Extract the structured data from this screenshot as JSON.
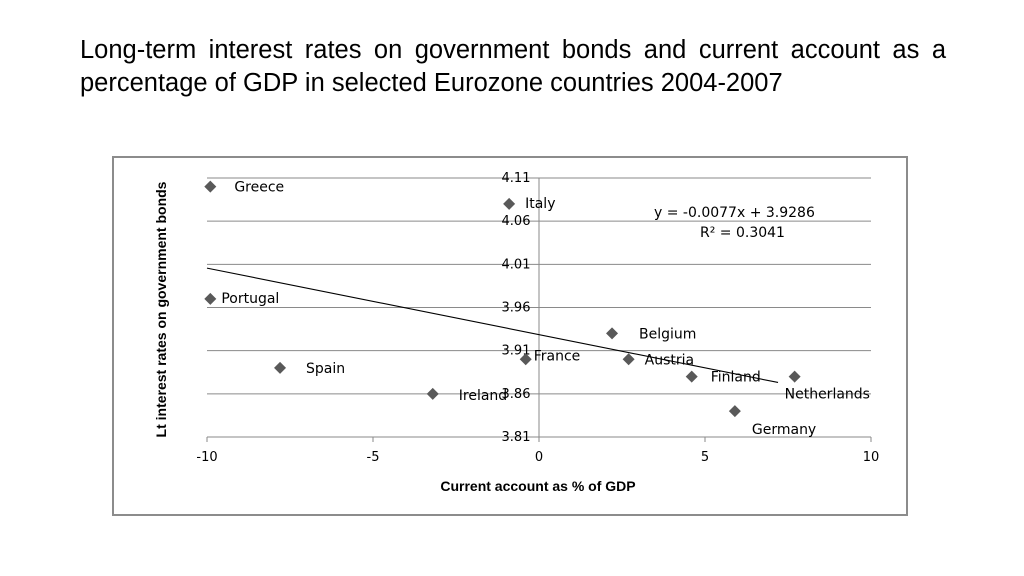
{
  "slide": {
    "title": "Long-term interest rates on government bonds and current account as a percentage of GDP in selected Eurozone countries 2004-2007"
  },
  "chart_data": {
    "type": "scatter",
    "title": "",
    "xlabel": "Current account as % of GDP",
    "ylabel": "Lt interest rates on government bonds",
    "xlim": [
      -10,
      10
    ],
    "ylim": [
      3.81,
      4.11
    ],
    "x_ticks": [
      -10,
      -5,
      0,
      5,
      10
    ],
    "x_tick_labels": [
      "-10",
      "-5",
      "0",
      "5",
      "10"
    ],
    "y_ticks": [
      3.81,
      3.86,
      3.91,
      3.96,
      4.01,
      4.06,
      4.11
    ],
    "y_tick_labels": [
      "3.81",
      "3.86",
      "3.91",
      "3.96",
      "4.01",
      "4.06",
      "4.11"
    ],
    "grid": true,
    "marker_color": "#595959",
    "points": [
      {
        "label": "Greece",
        "x": -9.9,
        "y": 4.1
      },
      {
        "label": "Italy",
        "x": -0.9,
        "y": 4.08
      },
      {
        "label": "Portugal",
        "x": -9.9,
        "y": 3.97
      },
      {
        "label": "Spain",
        "x": -7.8,
        "y": 3.89
      },
      {
        "label": "Ireland",
        "x": -3.2,
        "y": 3.86
      },
      {
        "label": "France",
        "x": -0.4,
        "y": 3.9
      },
      {
        "label": "Belgium",
        "x": 2.2,
        "y": 3.93
      },
      {
        "label": "Austria",
        "x": 2.7,
        "y": 3.9
      },
      {
        "label": "Finland",
        "x": 4.6,
        "y": 3.88
      },
      {
        "label": "Netherlands",
        "x": 7.7,
        "y": 3.88
      },
      {
        "label": "Germany",
        "x": 5.9,
        "y": 3.84
      }
    ],
    "trendline": {
      "equation": "y = -0.0077x + 3.9286",
      "r_squared": "R² = 0.3041",
      "slope": -0.0077,
      "intercept": 3.9286,
      "x_range": [
        -10,
        7.2
      ],
      "color": "#000000"
    }
  }
}
